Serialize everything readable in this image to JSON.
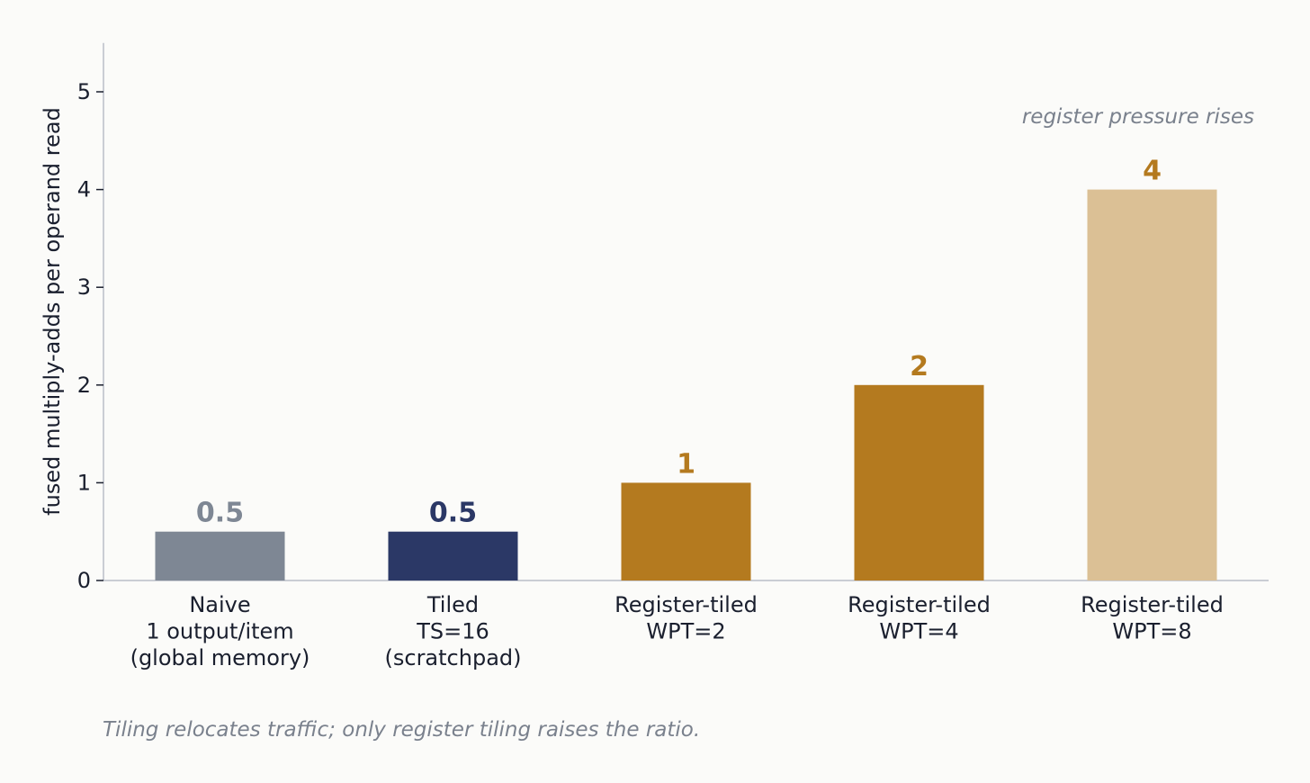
{
  "chart_data": {
    "type": "bar",
    "title": "",
    "xlabel": "",
    "ylabel": "fused multiply-adds per operand read",
    "ylim": [
      0,
      5.5
    ],
    "yticks": [
      0,
      1,
      2,
      3,
      4,
      5
    ],
    "grid": false,
    "categories": [
      [
        "Naive",
        "1 output/item",
        "(global memory)"
      ],
      [
        "Tiled",
        "TS=16",
        "(scratchpad)"
      ],
      [
        "Register-tiled",
        "WPT=2"
      ],
      [
        "Register-tiled",
        "WPT=4"
      ],
      [
        "Register-tiled",
        "WPT=8"
      ]
    ],
    "values": [
      0.5,
      0.5,
      1,
      2,
      4
    ],
    "value_labels": [
      "0.5",
      "0.5",
      "1",
      "2",
      "4"
    ],
    "bar_colors": [
      "#7e8794",
      "#2b3866",
      "#b47a1f",
      "#b47a1f",
      "#dbc095"
    ],
    "label_colors": [
      "#7e8794",
      "#2b3866",
      "#b47a1f",
      "#b47a1f",
      "#b47a1f"
    ],
    "annotation": "register pressure rises",
    "annotation_color": "#7a818d",
    "axis_color": "#b9bec8"
  },
  "caption": "Tiling relocates traffic; only register tiling raises the ratio."
}
